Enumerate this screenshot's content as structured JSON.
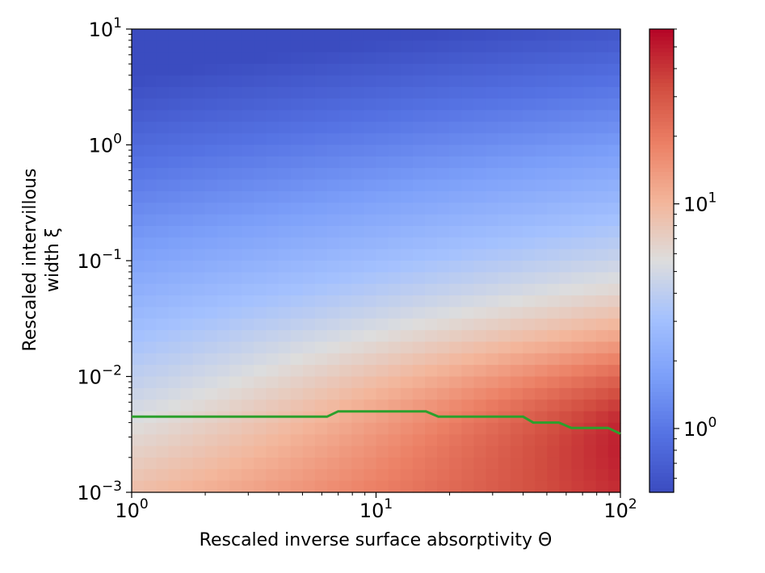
{
  "chart_data": {
    "type": "heatmap",
    "title": "",
    "xlabel": "Rescaled inverse surface absorptivity Θ",
    "ylabel_line1": "Rescaled intervillous",
    "ylabel_line2": "width ξ",
    "xscale": "log",
    "yscale": "log",
    "xlim": [
      1,
      100
    ],
    "ylim": [
      0.001,
      10
    ],
    "x_ticks": [
      {
        "value": 1,
        "base": "10",
        "exp": "0"
      },
      {
        "value": 10,
        "base": "10",
        "exp": "1"
      },
      {
        "value": 100,
        "base": "10",
        "exp": "2"
      }
    ],
    "y_ticks": [
      {
        "value": 0.001,
        "base": "10",
        "exp": "−3"
      },
      {
        "value": 0.01,
        "base": "10",
        "exp": "−2"
      },
      {
        "value": 0.1,
        "base": "10",
        "exp": "−1"
      },
      {
        "value": 1,
        "base": "10",
        "exp": "0"
      },
      {
        "value": 10,
        "base": "10",
        "exp": "1"
      }
    ],
    "colormap": "coolwarm",
    "colorbar": {
      "scale": "log",
      "range": [
        0.52,
        60
      ],
      "ticks": [
        {
          "value": 1,
          "base": "10",
          "exp": "0"
        },
        {
          "value": 10,
          "base": "10",
          "exp": "1"
        }
      ]
    },
    "grid": false,
    "optimal_line": {
      "name": "optimal width",
      "color": "#2ca02c",
      "x": [
        1,
        6.3,
        7,
        16,
        18,
        40,
        44,
        56,
        63,
        89,
        100
      ],
      "y": [
        0.0045,
        0.0045,
        0.005,
        0.005,
        0.0045,
        0.0045,
        0.004,
        0.004,
        0.0036,
        0.0036,
        0.0032
      ]
    }
  }
}
